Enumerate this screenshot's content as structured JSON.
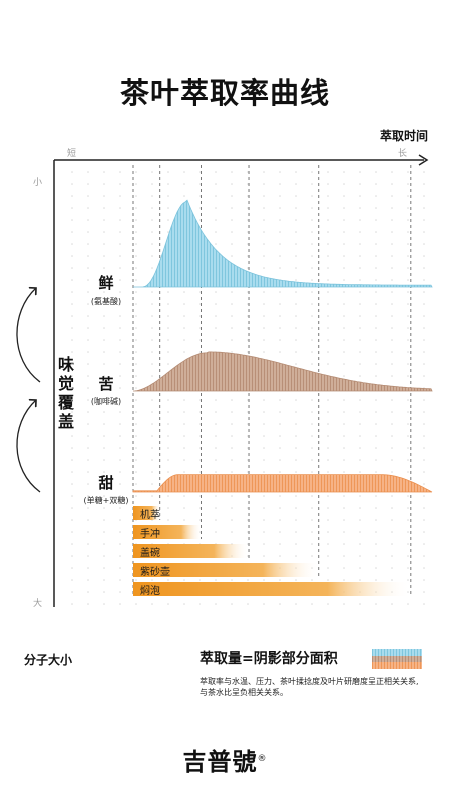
{
  "title": "茶叶萃取率曲线",
  "x_axis": {
    "title": "萃取时间",
    "start_label": "短",
    "end_label": "长"
  },
  "y_axis": {
    "title": "味觉覆盖",
    "top_label": "小",
    "bottom_label": "大"
  },
  "molecule_axis_label": "分子大小",
  "formula": "萃取量=阴影部分面积",
  "footnote_line1": "萃取率与水温、压力、茶叶揉捻度及叶片研磨度呈正相关关系,",
  "footnote_line2": "与茶水比呈负相关关系。",
  "brand": "吉普號",
  "brand_mark": "®",
  "colors": {
    "blue": "#8fd2e8",
    "brown": "#c49d86",
    "orange": "#f3a46c",
    "bar_orange": "#ef9b2b",
    "axis": "#222222",
    "grid": "#d9d9d9"
  },
  "chart_data": {
    "type": "area",
    "x_range": [
      "短",
      "长"
    ],
    "series": [
      {
        "name": "鲜",
        "sub": "(氨基酸)",
        "color": "#8fd2e8",
        "shape": {
          "rise_start": 0.03,
          "peak_at": 0.18,
          "peak_height": 0.95,
          "tail": "long-right-skew"
        }
      },
      {
        "name": "苦",
        "sub": "(咖啡碱)",
        "color": "#c49d86",
        "shape": {
          "rise_start": 0.0,
          "peak_at": 0.25,
          "peak_height": 0.45,
          "tail": "gradual"
        }
      },
      {
        "name": "甜",
        "sub": "(单糖+双糖)",
        "color": "#f3a46c",
        "shape": {
          "rise_start": 0.08,
          "plateau_from": 0.15,
          "plateau_to": 0.83,
          "plateau_height": 0.28,
          "end": 1.0
        }
      }
    ],
    "methods": [
      {
        "label": "机萃",
        "duration": 0.06
      },
      {
        "label": "手冲",
        "duration": 0.21
      },
      {
        "label": "盖碗",
        "duration": 0.38
      },
      {
        "label": "紫砂壶",
        "duration": 0.63
      },
      {
        "label": "焖泡",
        "duration": 0.96
      }
    ]
  }
}
